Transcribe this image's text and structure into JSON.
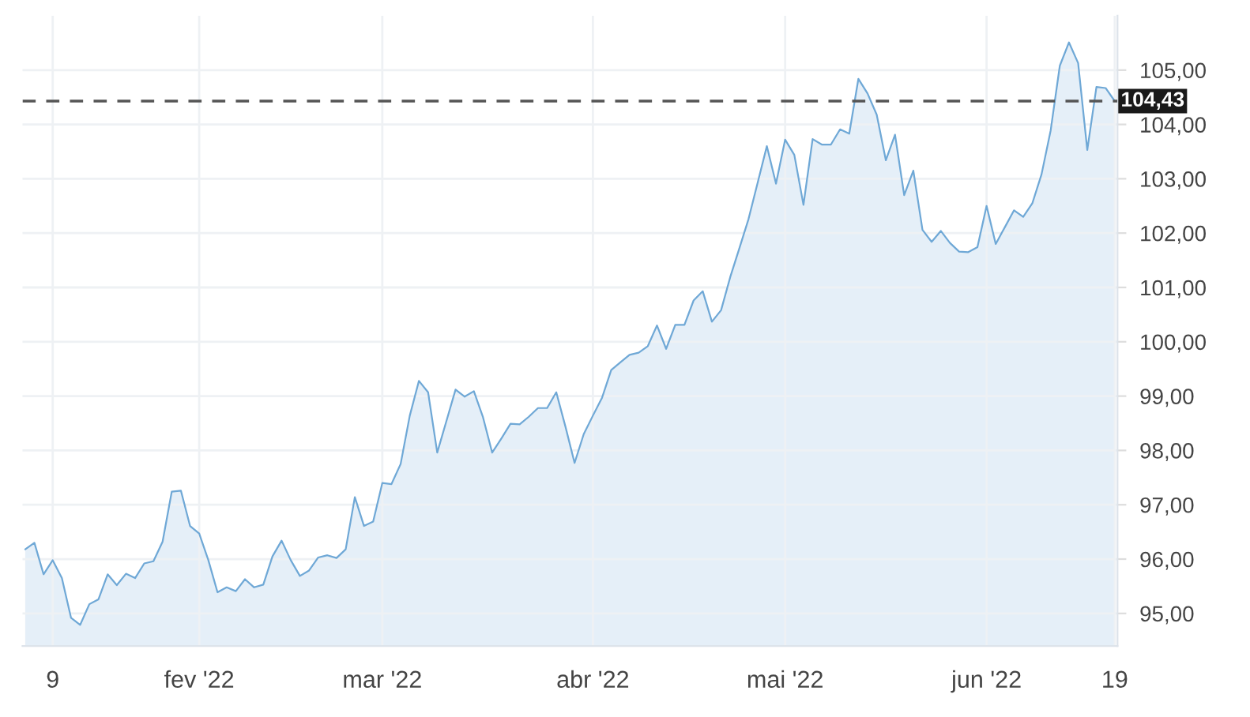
{
  "chart_data": {
    "type": "area",
    "categories": [
      null,
      null,
      null,
      "9",
      null,
      null,
      null,
      null,
      null,
      null,
      null,
      null,
      null,
      null,
      null,
      null,
      null,
      null,
      null,
      "fev '22",
      null,
      null,
      null,
      null,
      null,
      null,
      null,
      null,
      null,
      null,
      null,
      null,
      null,
      null,
      null,
      null,
      null,
      null,
      null,
      "mar '22",
      null,
      null,
      null,
      null,
      null,
      null,
      null,
      null,
      null,
      null,
      null,
      null,
      null,
      null,
      null,
      null,
      null,
      null,
      null,
      null,
      null,
      null,
      "abr '22",
      null,
      null,
      null,
      null,
      null,
      null,
      null,
      null,
      null,
      null,
      null,
      null,
      null,
      null,
      null,
      null,
      null,
      null,
      null,
      null,
      "mai '22",
      null,
      null,
      null,
      null,
      null,
      null,
      null,
      null,
      null,
      null,
      null,
      null,
      null,
      null,
      null,
      null,
      null,
      null,
      null,
      null,
      null,
      "jun '22",
      null,
      null,
      null,
      null,
      null,
      null,
      null,
      null,
      null,
      null,
      null,
      null,
      null,
      "19"
    ],
    "series": [
      {
        "color": "#6fa8d6",
        "values": [
          96.18,
          96.3,
          95.72,
          95.98,
          95.65,
          94.92,
          94.79,
          95.17,
          95.26,
          95.72,
          95.52,
          95.73,
          95.65,
          95.92,
          95.96,
          96.32,
          97.24,
          97.26,
          96.61,
          96.47,
          95.98,
          95.39,
          95.48,
          95.41,
          95.63,
          95.48,
          95.53,
          96.05,
          96.34,
          95.98,
          95.69,
          95.79,
          96.03,
          96.07,
          96.02,
          96.18,
          97.14,
          96.61,
          96.69,
          97.4,
          97.38,
          97.75,
          98.64,
          99.28,
          99.07,
          97.96,
          98.54,
          99.12,
          98.99,
          99.09,
          98.61,
          97.96,
          98.22,
          98.49,
          98.48,
          98.62,
          98.78,
          98.78,
          99.07,
          98.44,
          97.77,
          98.3,
          98.64,
          98.97,
          99.48,
          99.62,
          99.76,
          99.8,
          99.92,
          100.3,
          99.87,
          100.31,
          100.31,
          100.76,
          100.93,
          100.37,
          100.58,
          101.19,
          101.72,
          102.26,
          102.93,
          103.6,
          102.91,
          103.72,
          103.44,
          102.52,
          103.73,
          103.63,
          103.63,
          103.91,
          103.83,
          104.84,
          104.57,
          104.18,
          103.34,
          103.81,
          102.7,
          103.15,
          102.06,
          101.84,
          102.04,
          101.82,
          101.66,
          101.65,
          101.74,
          102.5,
          101.8,
          102.11,
          102.42,
          102.3,
          102.55,
          103.08,
          103.89,
          105.08,
          105.51,
          105.13,
          103.53,
          104.69,
          104.67,
          104.43
        ]
      }
    ],
    "ylim": [
      94.4,
      106.0
    ],
    "yticks": [
      {
        "value": 95,
        "label": "95,00"
      },
      {
        "value": 96,
        "label": "96,00"
      },
      {
        "value": 97,
        "label": "97,00"
      },
      {
        "value": 98,
        "label": "98,00"
      },
      {
        "value": 99,
        "label": "99,00"
      },
      {
        "value": 100,
        "label": "100,00"
      },
      {
        "value": 101,
        "label": "101,00"
      },
      {
        "value": 102,
        "label": "102,00"
      },
      {
        "value": 103,
        "label": "103,00"
      },
      {
        "value": 104,
        "label": "104,00"
      },
      {
        "value": 105,
        "label": "105,00"
      }
    ],
    "ref_lines": [
      {
        "axis": "y",
        "value": 104.43,
        "label": "104,43",
        "color": "#555555",
        "line_style": "dashed"
      }
    ],
    "grid": true,
    "legend": false
  }
}
